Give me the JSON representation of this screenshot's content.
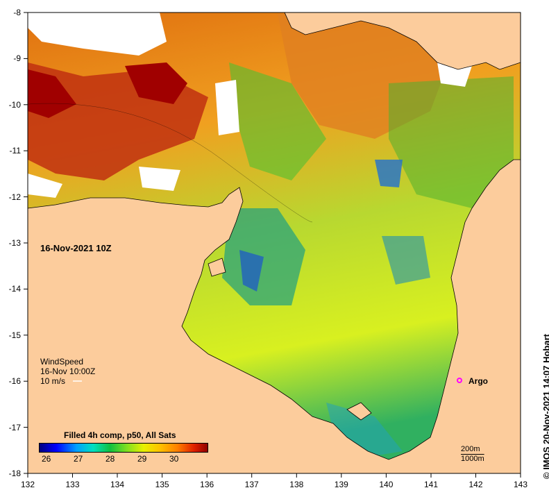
{
  "map": {
    "date_label": "16-Nov-2021 10Z",
    "x_ticks": [
      "132",
      "133",
      "134",
      "135",
      "136",
      "137",
      "138",
      "139",
      "140",
      "141",
      "142",
      "143"
    ],
    "y_ticks": [
      "-8",
      "-9",
      "-10",
      "-11",
      "-12",
      "-13",
      "-14",
      "-15",
      "-16",
      "-17",
      "-18"
    ],
    "land_color": "#fccc9c",
    "extent": {
      "lon": [
        132,
        143
      ],
      "lat": [
        -18,
        -8
      ]
    }
  },
  "wind_legend": {
    "title": "WindSpeed",
    "time": "16-Nov 10:00Z",
    "scale": "10 m/s"
  },
  "sst_legend": {
    "title": "Filled 4h comp, p50, All Sats",
    "ticks": [
      "26",
      "27",
      "28",
      "29",
      "30"
    ],
    "range": [
      25.8,
      31.0
    ]
  },
  "depth_legend": {
    "line1": "200m",
    "line2": "1000m"
  },
  "argo": {
    "label": "Argo",
    "color": "#ff00ff",
    "lon": 141.7,
    "lat": -16.0
  },
  "credit": "© IMOS 20-Nov-2021 14:07 Hobart"
}
